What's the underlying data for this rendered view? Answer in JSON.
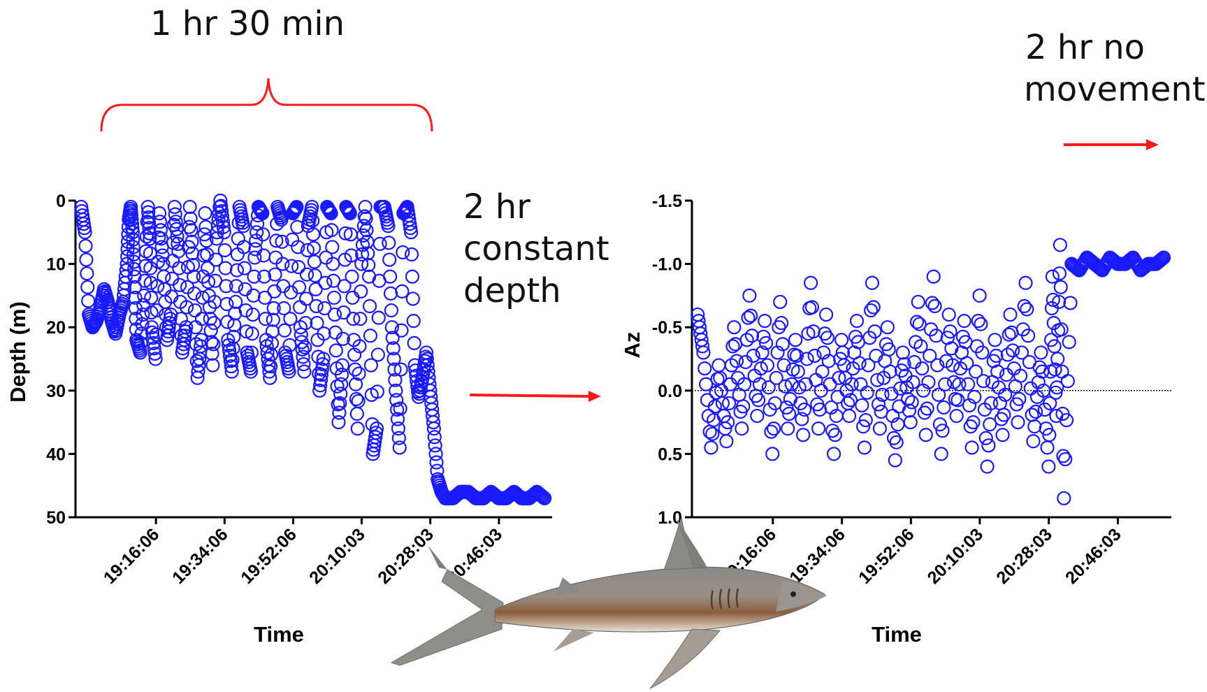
{
  "annotations": {
    "bracket_label": "1 hr 30 min",
    "constant_depth": [
      "2 hr",
      "constant",
      "depth"
    ],
    "no_movement": [
      "2 hr no",
      "movement"
    ],
    "arrow_color": "#ff1a1a",
    "bracket_color": "#ff1a1a"
  },
  "image": {
    "subject": "shark-illustration"
  },
  "chart_data": [
    {
      "type": "scatter",
      "title": "",
      "xlabel": "Time",
      "ylabel": "Depth (m)",
      "ylim": [
        50,
        0
      ],
      "inverted_y": true,
      "yticks": [
        "0",
        "10",
        "20",
        "30",
        "40",
        "50"
      ],
      "xticks": [
        "19:16:06",
        "19:34:06",
        "19:52:06",
        "20:10:03",
        "20:28:03",
        "20:46:03"
      ],
      "xlim": [
        "18:55:00",
        "21:00:00"
      ],
      "marker": "open-circle",
      "color": "#1a1aff",
      "series": [
        {
          "x": [
            "18:56:30",
            "18:57:30",
            "18:58:30",
            "18:59:30",
            "19:00:30",
            "19:01:30",
            "19:02:30",
            "19:03:30",
            "19:04:30",
            "19:05:30",
            "19:06:30",
            "19:07:30",
            "19:08:30",
            "19:09:00",
            "19:09:30",
            "19:10:00",
            "19:10:30",
            "19:11:00",
            "19:12:00",
            "19:13:00",
            "19:14:00",
            "19:14:30",
            "19:15:00",
            "19:16:00",
            "19:17:00",
            "19:18:00",
            "19:19:00",
            "19:20:00",
            "19:21:00",
            "19:22:00",
            "19:23:00",
            "19:24:00",
            "19:25:00",
            "19:26:00",
            "19:27:00",
            "19:28:00",
            "19:29:00",
            "19:30:00",
            "19:31:00",
            "19:32:00",
            "19:33:00",
            "19:34:00",
            "19:35:00",
            "19:36:00",
            "19:37:00",
            "19:38:00",
            "19:39:00",
            "19:40:00",
            "19:41:00",
            "19:42:00",
            "19:43:00",
            "19:44:00",
            "19:45:00",
            "19:46:00",
            "19:47:00",
            "19:48:00",
            "19:49:00",
            "19:50:00",
            "19:51:00",
            "19:52:00",
            "19:53:00",
            "19:54:00",
            "19:55:00",
            "19:56:00",
            "19:57:00",
            "19:58:00",
            "19:59:00",
            "20:00:00",
            "20:01:00",
            "20:02:00",
            "20:03:00",
            "20:04:00",
            "20:05:00",
            "20:06:00",
            "20:07:00",
            "20:08:00",
            "20:09:00",
            "20:10:00",
            "20:11:00",
            "20:12:00",
            "20:13:00",
            "20:14:00",
            "20:15:00",
            "20:16:00",
            "20:17:00",
            "20:18:00",
            "20:19:00",
            "20:20:00",
            "20:21:00",
            "20:22:00",
            "20:23:00",
            "20:24:00",
            "20:25:00",
            "20:26:00",
            "20:27:00",
            "20:28:00",
            "20:29:00",
            "20:30:00",
            "20:31:00",
            "20:32:00",
            "20:34:00",
            "20:36:00",
            "20:38:00",
            "20:40:00",
            "20:42:00",
            "20:44:00",
            "20:46:00",
            "20:48:00",
            "20:50:00",
            "20:52:00",
            "20:54:00",
            "20:56:00",
            "20:58:00"
          ],
          "y": [
            1,
            5,
            18,
            20,
            19,
            17,
            14,
            16,
            19,
            21,
            18,
            16,
            10,
            3,
            1,
            5,
            12,
            22,
            24,
            15,
            1,
            6,
            20,
            25,
            2,
            10,
            22,
            18,
            1,
            8,
            24,
            20,
            1,
            12,
            28,
            22,
            2,
            15,
            26,
            6,
            0,
            5,
            22,
            27,
            16,
            1,
            4,
            24,
            27,
            9,
            1,
            2,
            22,
            28,
            17,
            1,
            3,
            24,
            27,
            2,
            1,
            20,
            27,
            4,
            1,
            14,
            30,
            25,
            1,
            2,
            18,
            35,
            26,
            1,
            2,
            22,
            36,
            10,
            1,
            12,
            40,
            36,
            1,
            1,
            4,
            20,
            30,
            39,
            2,
            1,
            5,
            26,
            31,
            28,
            24,
            30,
            36,
            44,
            46,
            47,
            47,
            46,
            46,
            47,
            47,
            46,
            47,
            47,
            46,
            47,
            47,
            46,
            47
          ]
        }
      ]
    },
    {
      "type": "scatter",
      "title": "",
      "xlabel": "Time",
      "ylabel": "Az",
      "ylim": [
        1.0,
        -1.5
      ],
      "inverted_y": true,
      "yticks": [
        "-1.5",
        "-1.0",
        "-0.5",
        "0.0",
        "0.5",
        "1.0"
      ],
      "xticks": [
        "19:16:06",
        "19:34:06",
        "19:52:06",
        "20:10:03",
        "20:28:03",
        "20:46:03"
      ],
      "xlim": [
        "18:55:00",
        "21:00:00"
      ],
      "reference_line": 0.0,
      "marker": "open-circle",
      "color": "#1a1aff",
      "series": [
        {
          "x": [
            "18:56:30",
            "18:58:00",
            "19:00:00",
            "19:02:00",
            "19:04:00",
            "19:06:00",
            "19:08:00",
            "19:10:00",
            "19:12:00",
            "19:14:00",
            "19:16:00",
            "19:18:00",
            "19:20:00",
            "19:22:00",
            "19:24:00",
            "19:26:00",
            "19:28:00",
            "19:30:00",
            "19:32:00",
            "19:34:00",
            "19:36:00",
            "19:38:00",
            "19:40:00",
            "19:42:00",
            "19:44:00",
            "19:46:00",
            "19:48:00",
            "19:50:00",
            "19:52:00",
            "19:54:00",
            "19:56:00",
            "19:58:00",
            "20:00:00",
            "20:02:00",
            "20:04:00",
            "20:06:00",
            "20:08:00",
            "20:10:00",
            "20:12:00",
            "20:14:00",
            "20:16:00",
            "20:18:00",
            "20:20:00",
            "20:22:00",
            "20:24:00",
            "20:26:00",
            "20:28:00",
            "20:29:00",
            "20:30:00",
            "20:31:00",
            "20:32:00",
            "20:34:00",
            "20:36:00",
            "20:38:00",
            "20:40:00",
            "20:42:00",
            "20:44:00",
            "20:46:00",
            "20:48:00",
            "20:50:00",
            "20:52:00",
            "20:54:00",
            "20:56:00",
            "20:58:00"
          ],
          "y": [
            -0.6,
            -0.3,
            0.45,
            -0.2,
            0.4,
            -0.5,
            0.3,
            -0.75,
            0.2,
            -0.55,
            0.5,
            -0.7,
            0.3,
            -0.4,
            0.35,
            -0.85,
            0.3,
            -0.6,
            0.5,
            -0.4,
            0.2,
            -0.55,
            0.45,
            -0.85,
            0.3,
            -0.5,
            0.55,
            -0.3,
            0.25,
            -0.7,
            0.35,
            -0.9,
            0.5,
            -0.6,
            0.2,
            -0.55,
            0.45,
            -0.75,
            0.6,
            -0.4,
            0.35,
            -0.6,
            0.25,
            -0.85,
            0.4,
            -0.3,
            0.6,
            -0.9,
            0.2,
            -1.15,
            0.85,
            -1.0,
            -0.95,
            -1.05,
            -1.0,
            -0.95,
            -1.05,
            -1.0,
            -1.0,
            -1.05,
            -0.95,
            -1.0,
            -1.0,
            -1.05
          ]
        }
      ]
    }
  ]
}
